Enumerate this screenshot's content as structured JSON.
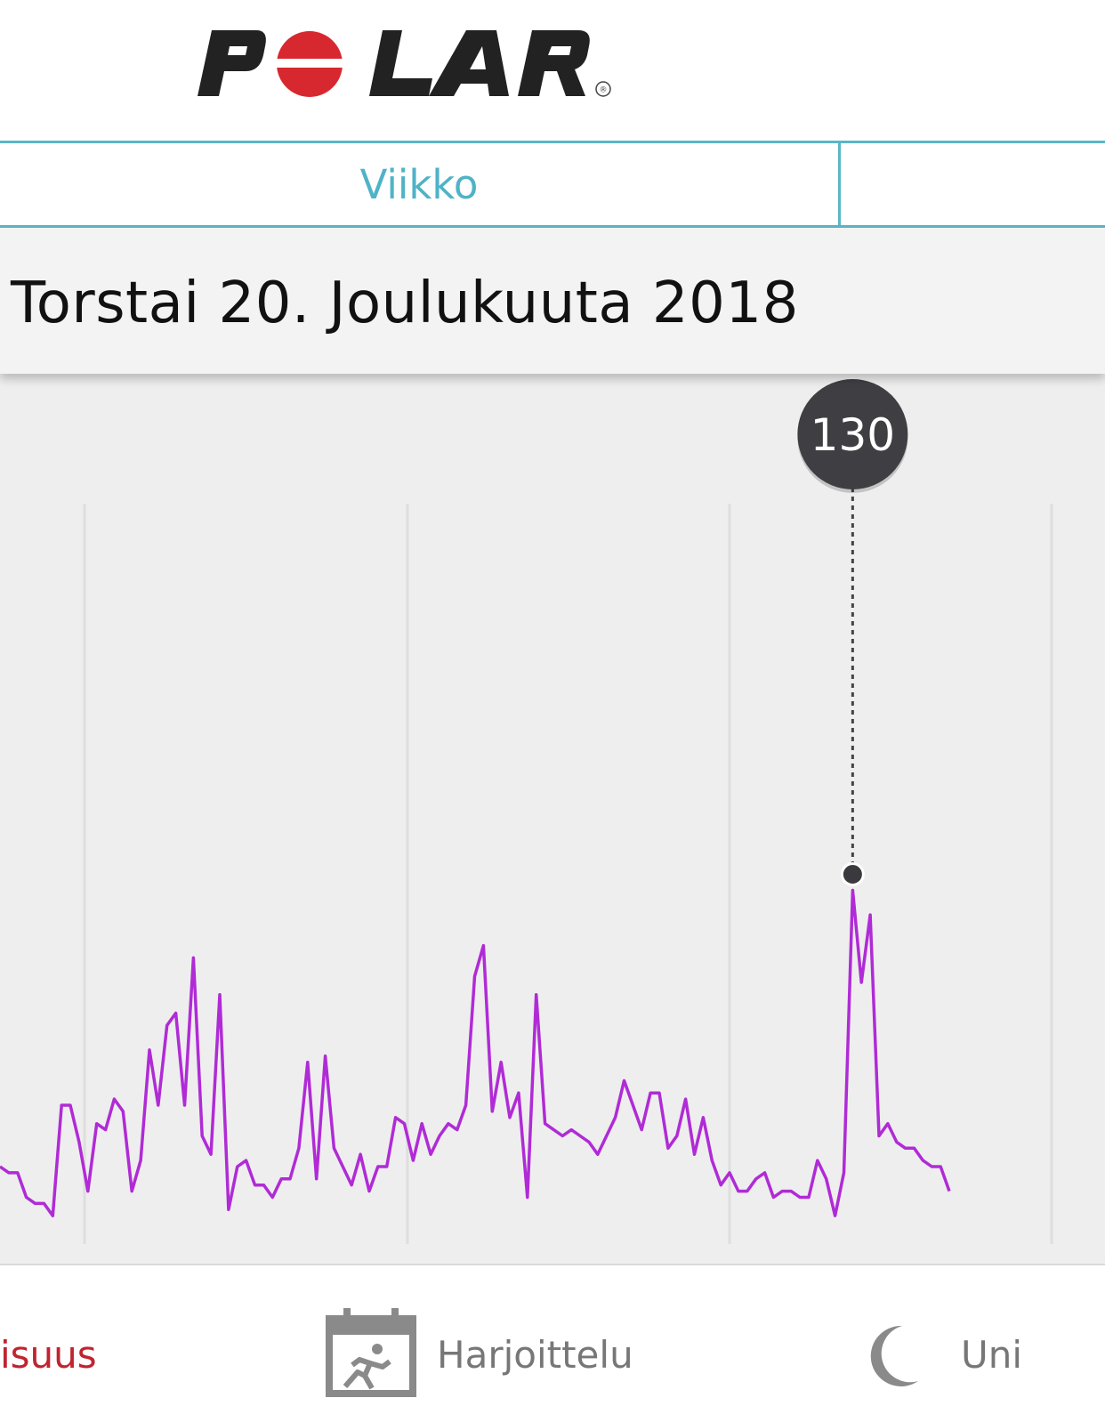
{
  "brand": {
    "logo_text": "POLAR",
    "registered_mark": "®",
    "accent_color": "#d7282f"
  },
  "tabs": [
    {
      "label": "Viikko",
      "selected": true
    },
    {
      "label": ""
    }
  ],
  "date_header": {
    "label": "Torstai 20. Joulukuuta 2018"
  },
  "chart_data": {
    "type": "line",
    "series_color": "#b02bd6",
    "grid": true,
    "selected_point": {
      "value": 130
    },
    "series": [
      {
        "values": [
          80,
          79,
          79,
          75,
          74,
          74,
          72,
          90,
          90,
          84,
          76,
          87,
          86,
          91,
          89,
          76,
          81,
          99,
          90,
          103,
          105,
          90,
          114,
          85,
          82,
          108,
          73,
          80,
          81,
          77,
          77,
          75,
          78,
          78,
          83,
          97,
          78,
          98,
          83,
          80,
          77,
          82,
          76,
          80,
          80,
          88,
          87,
          81,
          87,
          82,
          85,
          87,
          86,
          90,
          111,
          116,
          89,
          97,
          88,
          92,
          75,
          108,
          87,
          86,
          85,
          86,
          85,
          84,
          82,
          85,
          88,
          94,
          90,
          86,
          92,
          92,
          83,
          85,
          91,
          82,
          88,
          81,
          77,
          79,
          76,
          76,
          78,
          79,
          75,
          76,
          76,
          75,
          75,
          81,
          78,
          72,
          79,
          125,
          110,
          121,
          85,
          87,
          84,
          83,
          83,
          81,
          80,
          80,
          76
        ]
      }
    ]
  },
  "bottom_nav": {
    "activity_label": "isuus",
    "training_label": "Harjoittelu",
    "sleep_label": "Uni",
    "training_icon": "training-calendar-icon",
    "sleep_icon": "moon-icon"
  }
}
